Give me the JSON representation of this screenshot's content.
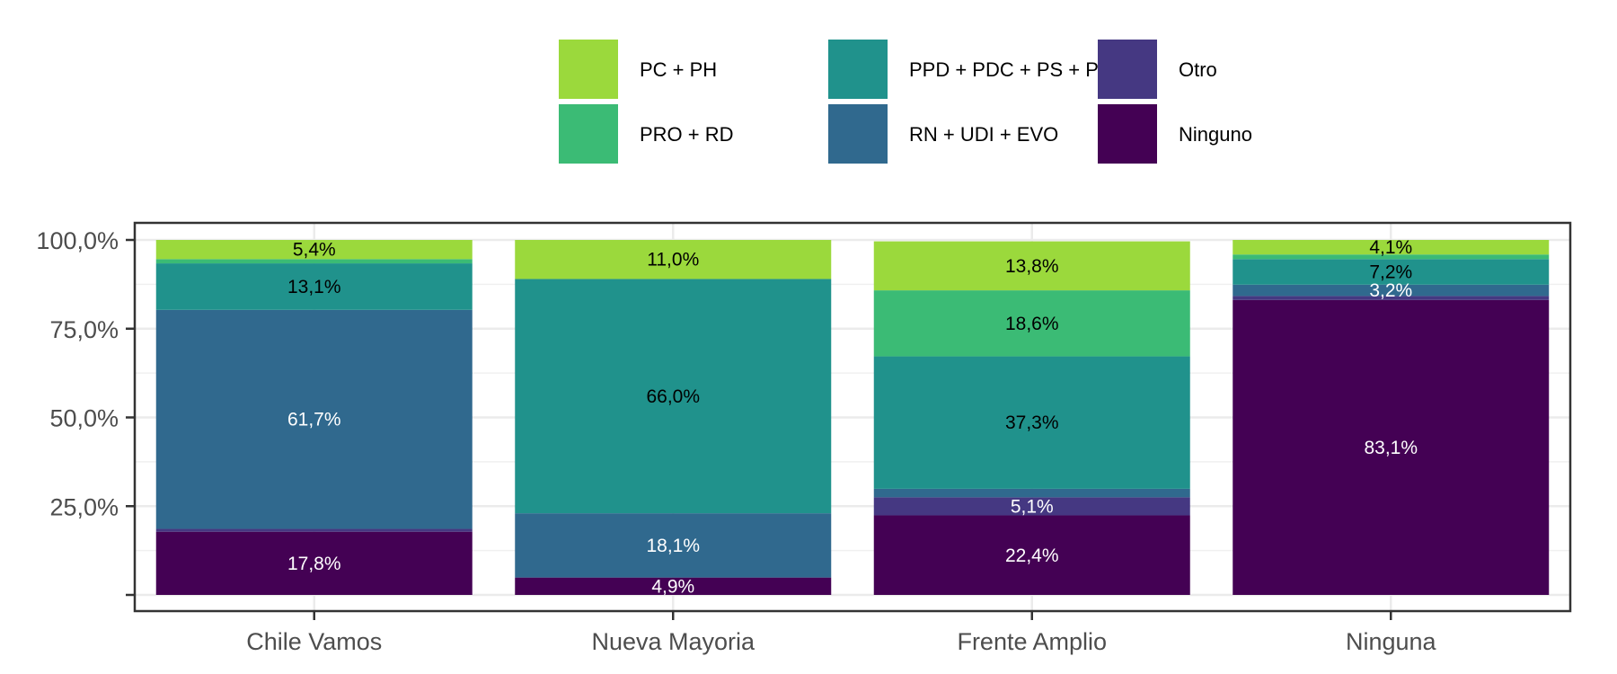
{
  "chart_data": {
    "type": "bar",
    "stacked": true,
    "categories": [
      "Chile Vamos",
      "Nueva Mayoria",
      "Frente Amplio",
      "Ninguna"
    ],
    "ylim": [
      0,
      100
    ],
    "y_ticks": [
      {
        "value": 25,
        "label": "25,0%"
      },
      {
        "value": 50,
        "label": "50,0%"
      },
      {
        "value": 75,
        "label": "75,0%"
      },
      {
        "value": 100,
        "label": "100,0%"
      }
    ],
    "grid": true,
    "legend": {
      "position": "top",
      "entries": [
        {
          "name": "PC + PH",
          "color": "#9bd93c"
        },
        {
          "name": "PRO + RD",
          "color": "#3bbb75"
        },
        {
          "name": "PPD + PDC + PS + PR",
          "color": "#20928c"
        },
        {
          "name": "RN + UDI + EVO",
          "color": "#30698e"
        },
        {
          "name": "Otro",
          "color": "#453882"
        },
        {
          "name": "Ninguno",
          "color": "#440154"
        }
      ]
    },
    "series": [
      {
        "name": "Ninguno",
        "color": "#440154",
        "label_color": "#ffffff",
        "values": [
          17.8,
          4.9,
          22.4,
          83.1
        ],
        "labels": [
          "17,8%",
          "4,9%",
          "22,4%",
          "83,1%"
        ]
      },
      {
        "name": "Otro",
        "color": "#453882",
        "label_color": "#ffffff",
        "values": [
          0.8,
          0.0,
          5.1,
          1.1
        ],
        "labels": [
          "",
          "",
          "5,1%",
          ""
        ]
      },
      {
        "name": "RN + UDI + EVO",
        "color": "#30698e",
        "label_color": "#ffffff",
        "values": [
          61.7,
          18.1,
          2.4,
          3.2
        ],
        "labels": [
          "61,7%",
          "18,1%",
          "",
          "3,2%"
        ]
      },
      {
        "name": "PPD + PDC + PS + PR",
        "color": "#20928c",
        "label_color": "#000000",
        "values": [
          13.1,
          66.0,
          37.3,
          7.2
        ],
        "labels": [
          "13,1%",
          "66,0%",
          "37,3%",
          "7,2%"
        ]
      },
      {
        "name": "PRO + RD",
        "color": "#3bbb75",
        "label_color": "#000000",
        "values": [
          1.2,
          0.0,
          18.6,
          1.3
        ],
        "labels": [
          "",
          "",
          "18,6%",
          ""
        ]
      },
      {
        "name": "PC + PH",
        "color": "#9bd93c",
        "label_color": "#000000",
        "values": [
          5.4,
          11.0,
          13.8,
          4.1
        ],
        "labels": [
          "5,4%",
          "11,0%",
          "13,8%",
          "4,1%"
        ]
      }
    ]
  }
}
